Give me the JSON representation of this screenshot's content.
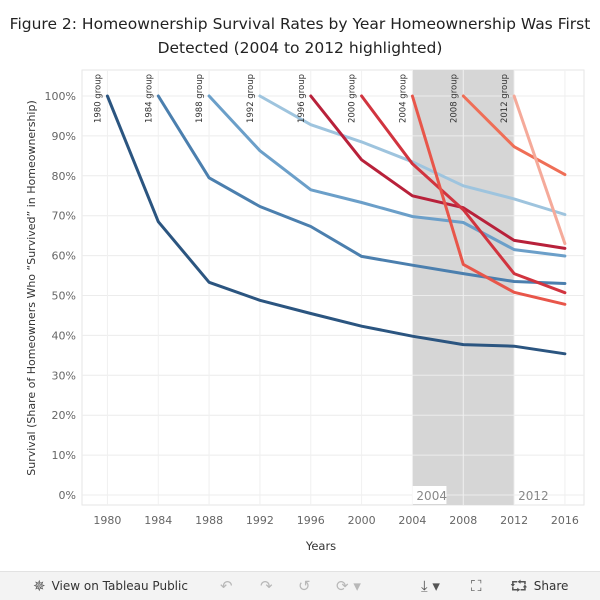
{
  "title_line1": "Figure 2: Homeownership Survival Rates by Year Homeownership Was First",
  "title_line2": "Detected (2004 to 2012 highlighted)",
  "toolbar": {
    "view_label": "View on Tableau Public",
    "share_label": "Share",
    "icons": [
      "tableau-icon",
      "undo-icon",
      "redo-icon",
      "revert-icon",
      "download-icon",
      "fullscreen-icon",
      "share-icon"
    ]
  },
  "chart_data": {
    "type": "line",
    "title": "Figure 2: Homeownership Survival Rates by Year Homeownership Was First Detected (2004 to 2012 highlighted)",
    "xlabel": "Years",
    "ylabel": "Survival (Share of Homeowners Who “Survived” in Homeownership)",
    "xlim": [
      1978,
      2017.5
    ],
    "ylim": [
      0,
      102
    ],
    "x_ticks": [
      1980,
      1984,
      1988,
      1992,
      1996,
      2000,
      2004,
      2008,
      2012,
      2016
    ],
    "y_ticks": [
      0,
      10,
      20,
      30,
      40,
      50,
      60,
      70,
      80,
      90,
      100
    ],
    "y_tick_labels": [
      "0%",
      "10%",
      "20%",
      "30%",
      "40%",
      "50%",
      "60%",
      "70%",
      "80%",
      "90%",
      "100%"
    ],
    "grid": true,
    "highlight": {
      "x_start": 2004,
      "x_end": 2012,
      "color": "#d6d6d6",
      "labels": [
        "2004",
        "2012"
      ]
    },
    "series": [
      {
        "name": "1980 group",
        "color": "#2b5580",
        "x": [
          1980,
          1984,
          1988,
          1992,
          1996,
          2000,
          2004,
          2008,
          2012,
          2016
        ],
        "y": [
          100,
          68.5,
          53.3,
          48.8,
          45.5,
          42.3,
          39.8,
          37.7,
          37.3,
          35.4
        ]
      },
      {
        "name": "1984 group",
        "color": "#4b7fae",
        "x": [
          1984,
          1988,
          1992,
          1996,
          2000,
          2004,
          2008,
          2012,
          2016
        ],
        "y": [
          100,
          79.5,
          72.3,
          67.3,
          59.8,
          57.6,
          55.5,
          53.5,
          53.0
        ]
      },
      {
        "name": "1988 group",
        "color": "#6b9fc9",
        "x": [
          1988,
          1992,
          1996,
          2000,
          2004,
          2008,
          2012,
          2016
        ],
        "y": [
          100,
          86.3,
          76.5,
          73.3,
          69.8,
          68.3,
          61.5,
          59.9
        ]
      },
      {
        "name": "1992 group",
        "color": "#9ec4de",
        "x": [
          1992,
          1996,
          2000,
          2004,
          2008,
          2012,
          2016
        ],
        "y": [
          100,
          92.8,
          88.5,
          83.5,
          77.5,
          74.2,
          70.3
        ]
      },
      {
        "name": "1996 group",
        "color": "#b8213a",
        "x": [
          1996,
          2000,
          2004,
          2008,
          2012,
          2016
        ],
        "y": [
          100,
          84.0,
          75.0,
          72.0,
          63.8,
          61.8
        ]
      },
      {
        "name": "2000 group",
        "color": "#d1343f",
        "x": [
          2000,
          2004,
          2008,
          2012,
          2016
        ],
        "y": [
          100,
          83.0,
          71.5,
          55.5,
          50.7
        ]
      },
      {
        "name": "2004 group",
        "color": "#e8564a",
        "x": [
          2004,
          2008,
          2012,
          2016
        ],
        "y": [
          100,
          57.8,
          50.8,
          47.8
        ]
      },
      {
        "name": "2008 group",
        "color": "#ef6e56",
        "x": [
          2008,
          2012,
          2016
        ],
        "y": [
          100,
          87.3,
          80.3
        ]
      },
      {
        "name": "2012 group",
        "color": "#f5aa9a",
        "x": [
          2012,
          2016
        ],
        "y": [
          100,
          63.0
        ]
      }
    ]
  }
}
